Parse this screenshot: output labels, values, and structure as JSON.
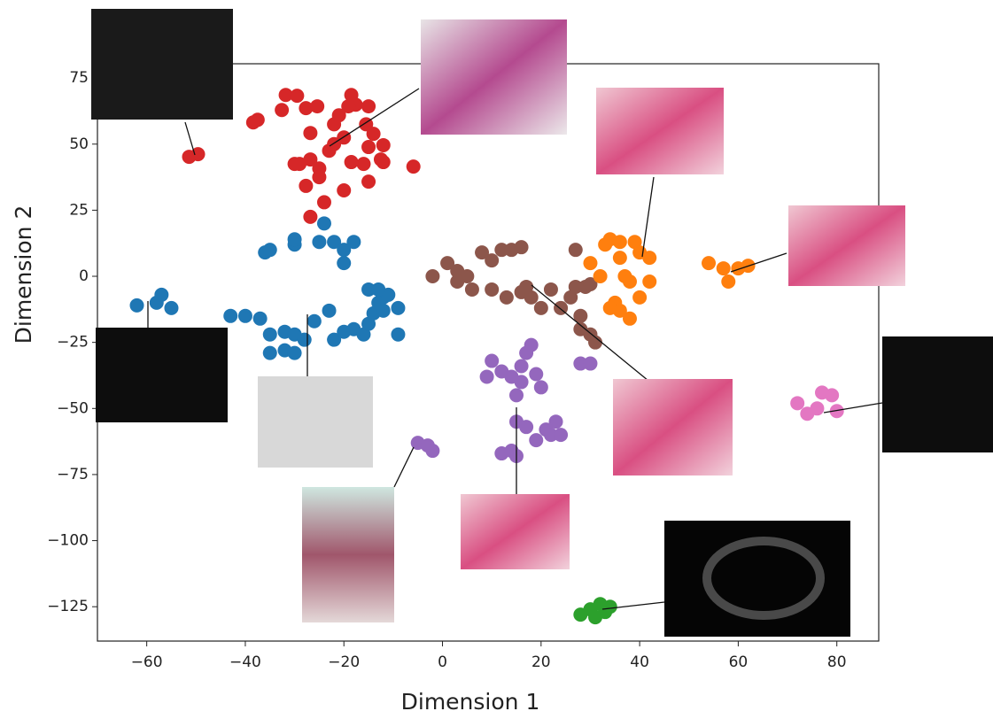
{
  "chart_data": {
    "type": "scatter",
    "xlabel": "Dimension 1",
    "ylabel": "Dimension 2",
    "xlim": [
      -70,
      88.5
    ],
    "ylim": [
      -138,
      80.4
    ],
    "xticks": [
      {
        "value": -60,
        "label": "−60"
      },
      {
        "value": -40,
        "label": "−40"
      },
      {
        "value": -20,
        "label": "−20"
      },
      0,
      20,
      40,
      60,
      80
    ],
    "yticks": [
      {
        "value": -125,
        "label": "−125"
      },
      {
        "value": -100,
        "label": "−100"
      },
      {
        "value": -75,
        "label": "−75"
      },
      {
        "value": -50,
        "label": "−50"
      },
      {
        "value": -25,
        "label": "−25"
      },
      0,
      25,
      50,
      75
    ],
    "series": [
      {
        "color": "#d62728",
        "x": [
          -51.4,
          -49.6,
          -37.5,
          -38.4,
          -31.8,
          -29.5,
          -32.6,
          -27.7,
          -25.4,
          -18.5,
          -17.6,
          -19.1,
          -15,
          -26.8,
          -22,
          -20,
          -23,
          -26.8,
          -25,
          -29,
          -30,
          -25,
          -27.7,
          -20,
          -15,
          -16,
          -12.5,
          -12,
          -18.5,
          -15,
          -14,
          -12,
          -15.5,
          -21,
          -5.9,
          -26.8,
          -24,
          -22
        ],
        "values": [
          45.2,
          46.2,
          59.2,
          58.2,
          68.6,
          68.3,
          62.9,
          63.6,
          64.3,
          68.6,
          64.9,
          64.3,
          64.3,
          54.2,
          57.5,
          52.5,
          47.5,
          44.2,
          40.8,
          42.5,
          42.5,
          37.5,
          34.2,
          32.5,
          35.8,
          42.5,
          44.2,
          43.2,
          43.2,
          48.9,
          53.9,
          49.6,
          57.5,
          60.9,
          41.5,
          22.5,
          28,
          50
        ]
      },
      {
        "color": "#1f77b4",
        "x": [
          -62,
          -58,
          -57,
          -55,
          -36,
          -35,
          -30,
          -30,
          -25,
          -24,
          -22,
          -20,
          -18,
          -20,
          -43,
          -40,
          -37,
          -35,
          -32,
          -30,
          -35,
          -32,
          -30,
          -28,
          -26,
          -23,
          -22,
          -20,
          -18,
          -16,
          -15,
          -14,
          -13,
          -12,
          -11,
          -12,
          -9,
          -9,
          -15,
          -13
        ],
        "values": [
          -11,
          -10,
          -7,
          -12,
          9,
          10,
          12,
          14,
          13,
          20,
          13,
          10,
          13,
          5,
          -15,
          -15,
          -16,
          -22,
          -21,
          -22,
          -29,
          -28,
          -29,
          -24,
          -17,
          -13,
          -24,
          -21,
          -20,
          -22,
          -18,
          -14,
          -10,
          -8,
          -7,
          -13,
          -12,
          -22,
          -5,
          -5
        ]
      },
      {
        "color": "#8c564b",
        "x": [
          -2,
          1,
          3,
          5,
          6,
          3,
          8,
          10,
          12,
          14,
          16,
          10,
          13,
          16,
          18,
          17,
          20,
          22,
          24,
          26,
          27,
          28,
          28,
          30,
          31,
          29,
          30,
          27
        ],
        "values": [
          0,
          5,
          2,
          0,
          -5,
          -2,
          9,
          6,
          10,
          10,
          11,
          -5,
          -8,
          -6,
          -8,
          -4,
          -12,
          -5,
          -12,
          -8,
          -4,
          -15,
          -20,
          -22,
          -25,
          -4,
          -3,
          10
        ]
      },
      {
        "color": "#ff7f0e",
        "x": [
          30,
          33,
          34,
          36,
          39,
          40,
          42,
          36,
          37,
          32,
          38,
          40,
          35,
          34,
          36,
          38,
          42,
          54,
          57,
          58,
          60,
          62
        ],
        "values": [
          5,
          12,
          14,
          13,
          13,
          9,
          7,
          7,
          0,
          0,
          -2,
          -8,
          -10,
          -12,
          -13,
          -16,
          -2,
          5,
          3,
          -2,
          3,
          4
        ]
      },
      {
        "color": "#9467bd",
        "x": [
          -5,
          -3,
          -2,
          10,
          9,
          12,
          14,
          15,
          16,
          17,
          18,
          19,
          16,
          20,
          15,
          17,
          19,
          21,
          23,
          22,
          24,
          12,
          14,
          15,
          28,
          30
        ],
        "values": [
          -63,
          -64,
          -66,
          -32,
          -38,
          -36,
          -38,
          -45,
          -34,
          -29,
          -26,
          -37,
          -40,
          -42,
          -55,
          -57,
          -62,
          -58,
          -55,
          -60,
          -60,
          -67,
          -66,
          -68,
          -33,
          -33
        ]
      },
      {
        "color": "#2ca02c",
        "x": [
          28,
          30,
          31,
          33,
          34,
          32
        ],
        "values": [
          -128,
          -126,
          -129,
          -127,
          -125,
          -124
        ]
      },
      {
        "color": "#e377c2",
        "x": [
          72,
          74,
          76,
          77,
          79,
          80
        ],
        "values": [
          -48,
          -52,
          -50,
          -44,
          -45,
          -51
        ]
      }
    ]
  }
}
